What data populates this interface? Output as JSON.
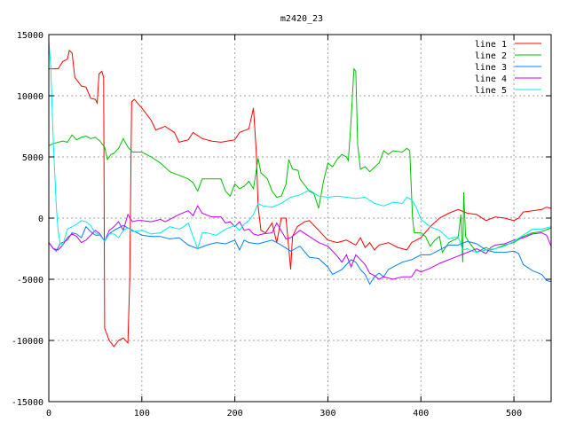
{
  "chart_data": {
    "type": "line",
    "title": "m2420_23",
    "xlabel": "",
    "ylabel": "",
    "xlim": [
      0,
      540
    ],
    "ylim": [
      -15000,
      15000
    ],
    "xticks": [
      0,
      100,
      200,
      300,
      400,
      500
    ],
    "yticks": [
      -15000,
      -10000,
      -5000,
      0,
      5000,
      10000,
      15000
    ],
    "grid": true,
    "legend_position": "top-right",
    "series": [
      {
        "name": "line 1",
        "color": "#ff0000",
        "x": [
          0,
          10,
          15,
          20,
          22,
          25,
          28,
          35,
          40,
          45,
          50,
          52,
          54,
          57,
          59,
          60,
          65,
          70,
          75,
          80,
          85,
          87,
          89,
          92,
          100,
          110,
          115,
          125,
          135,
          140,
          150,
          155,
          165,
          175,
          185,
          200,
          205,
          215,
          220,
          223,
          225,
          228,
          233,
          240,
          245,
          250,
          255,
          258,
          260,
          262,
          267,
          275,
          280,
          290,
          300,
          310,
          320,
          330,
          335,
          340,
          345,
          350,
          355,
          365,
          375,
          385,
          390,
          400,
          410,
          420,
          430,
          440,
          450,
          460,
          470,
          480,
          490,
          500,
          505,
          510,
          520,
          530,
          535,
          540
        ],
        "y": [
          12200,
          12200,
          12800,
          13000,
          13700,
          13500,
          11500,
          10800,
          10700,
          9800,
          9700,
          9400,
          11800,
          12000,
          11500,
          -9000,
          -10000,
          -10500,
          -10000,
          -9800,
          -10200,
          -5000,
          9500,
          9700,
          9000,
          8000,
          7200,
          7500,
          7000,
          6200,
          6400,
          7000,
          6500,
          6300,
          6200,
          6400,
          7000,
          7300,
          9000,
          5500,
          1000,
          -1000,
          -1200,
          -400,
          -2000,
          0,
          0,
          -2500,
          -4200,
          -1500,
          -700,
          -300,
          -200,
          -1000,
          -1800,
          -2000,
          -1800,
          -2200,
          -1600,
          -2400,
          -2000,
          -2600,
          -2200,
          -2000,
          -2400,
          -2600,
          -2000,
          -1600,
          -700,
          0,
          400,
          700,
          400,
          300,
          -200,
          100,
          0,
          -200,
          0,
          500,
          600,
          700,
          900,
          800
        ]
      },
      {
        "name": "line 2",
        "color": "#00c000",
        "x": [
          0,
          5,
          15,
          20,
          25,
          30,
          35,
          40,
          45,
          50,
          55,
          60,
          63,
          67,
          70,
          75,
          80,
          85,
          90,
          100,
          110,
          120,
          130,
          140,
          150,
          155,
          160,
          165,
          175,
          185,
          190,
          195,
          200,
          205,
          210,
          215,
          220,
          225,
          228,
          235,
          240,
          245,
          250,
          255,
          258,
          262,
          268,
          270,
          280,
          285,
          290,
          295,
          300,
          305,
          310,
          315,
          320,
          322,
          325,
          328,
          330,
          332,
          335,
          340,
          345,
          355,
          360,
          365,
          370,
          380,
          385,
          388,
          391,
          393,
          400,
          405,
          410,
          415,
          420,
          423,
          430,
          440,
          443,
          445,
          446,
          448,
          452,
          455,
          460,
          470,
          475,
          480,
          490,
          500,
          510,
          520,
          530,
          540
        ],
        "y": [
          5900,
          6100,
          6300,
          6200,
          6800,
          6400,
          6600,
          6700,
          6500,
          6600,
          6300,
          5800,
          4800,
          5200,
          5300,
          5700,
          6500,
          5800,
          5400,
          5400,
          5000,
          4500,
          3800,
          3500,
          3200,
          2900,
          2200,
          3200,
          3200,
          3200,
          2200,
          1800,
          2800,
          2400,
          2600,
          3000,
          2400,
          4900,
          3700,
          3200,
          2200,
          1700,
          1800,
          2800,
          4800,
          4000,
          3900,
          3200,
          2200,
          2000,
          800,
          2900,
          4500,
          4200,
          4800,
          5200,
          5000,
          4700,
          8000,
          12200,
          12000,
          6000,
          4000,
          4200,
          3800,
          4500,
          5500,
          5200,
          5500,
          5400,
          5700,
          5500,
          0,
          -1200,
          -1200,
          -1500,
          -2300,
          -1800,
          -1500,
          -2800,
          -2000,
          -1600,
          300,
          -3600,
          2100,
          -1500,
          -2000,
          -2300,
          -2800,
          -2400,
          -2600,
          -2500,
          -2200,
          -2000,
          -1500,
          -1200,
          -1100,
          -800
        ]
      },
      {
        "name": "line 3",
        "color": "#0080ff",
        "x": [
          0,
          5,
          8,
          12,
          20,
          25,
          30,
          35,
          40,
          45,
          50,
          55,
          60,
          65,
          70,
          75,
          80,
          85,
          90,
          100,
          110,
          120,
          130,
          140,
          150,
          160,
          170,
          180,
          190,
          200,
          205,
          210,
          215,
          225,
          230,
          240,
          250,
          260,
          270,
          280,
          290,
          300,
          305,
          315,
          320,
          325,
          330,
          335,
          340,
          345,
          350,
          355,
          360,
          365,
          370,
          380,
          390,
          400,
          410,
          420,
          430,
          440,
          450,
          455,
          460,
          470,
          480,
          490,
          500,
          505,
          510,
          520,
          530,
          535,
          540
        ],
        "y": [
          -2000,
          -2500,
          -2700,
          -2100,
          -1800,
          -1200,
          -1300,
          -1600,
          -700,
          -1100,
          -1400,
          -1400,
          -1900,
          -1300,
          -1000,
          -800,
          -600,
          -800,
          -1000,
          -1400,
          -1500,
          -1500,
          -1700,
          -1600,
          -2200,
          -2500,
          -2200,
          -2000,
          -2100,
          -1800,
          -2600,
          -1800,
          -2000,
          -2100,
          -2000,
          -1800,
          -2200,
          -2700,
          -2300,
          -3200,
          -3300,
          -4000,
          -4600,
          -4200,
          -3800,
          -3400,
          -3600,
          -4200,
          -4600,
          -5400,
          -4800,
          -4500,
          -4800,
          -4200,
          -4000,
          -3600,
          -3400,
          -3000,
          -3000,
          -2600,
          -2200,
          -2200,
          -1900,
          -2000,
          -2100,
          -2600,
          -2800,
          -2800,
          -2700,
          -2900,
          -3800,
          -4300,
          -4600,
          -5100,
          -5200
        ]
      },
      {
        "name": "line 4",
        "color": "#c000ff",
        "x": [
          0,
          5,
          10,
          15,
          20,
          25,
          30,
          35,
          40,
          45,
          50,
          55,
          60,
          65,
          70,
          75,
          80,
          85,
          90,
          95,
          100,
          110,
          120,
          125,
          130,
          140,
          150,
          155,
          160,
          165,
          175,
          185,
          190,
          195,
          200,
          205,
          210,
          215,
          220,
          225,
          230,
          240,
          245,
          255,
          260,
          265,
          270,
          280,
          290,
          300,
          310,
          315,
          320,
          325,
          330,
          340,
          345,
          350,
          355,
          360,
          370,
          380,
          390,
          395,
          400,
          410,
          420,
          430,
          440,
          450,
          460,
          470,
          475,
          480,
          490,
          500,
          510,
          520,
          530,
          535,
          540
        ],
        "y": [
          -2000,
          -2500,
          -2600,
          -2200,
          -1600,
          -1300,
          -1500,
          -2000,
          -1800,
          -1400,
          -1000,
          -1300,
          -1900,
          -1000,
          -700,
          -300,
          -1000,
          300,
          -300,
          -200,
          -200,
          -300,
          -100,
          -300,
          -100,
          300,
          600,
          200,
          1000,
          400,
          100,
          100,
          -400,
          -300,
          -700,
          -300,
          -1000,
          -900,
          -1300,
          -1400,
          -1300,
          -1200,
          -400,
          -1700,
          -1600,
          -1300,
          -1000,
          -1500,
          -2000,
          -2300,
          -3100,
          -3600,
          -3000,
          -4000,
          -3000,
          -3800,
          -4500,
          -4700,
          -5000,
          -4800,
          -5000,
          -4800,
          -4800,
          -4200,
          -4400,
          -4100,
          -3700,
          -3400,
          -3100,
          -2800,
          -2500,
          -2900,
          -2400,
          -2200,
          -2100,
          -1800,
          -1600,
          -1300,
          -1200,
          -1400,
          -2300
        ]
      },
      {
        "name": "line 5",
        "color": "#00eeee",
        "x": [
          0,
          2,
          5,
          8,
          10,
          12,
          15,
          20,
          25,
          30,
          35,
          40,
          45,
          50,
          55,
          60,
          65,
          70,
          75,
          80,
          85,
          90,
          100,
          110,
          120,
          130,
          140,
          145,
          150,
          155,
          160,
          165,
          170,
          180,
          190,
          200,
          205,
          210,
          215,
          220,
          225,
          230,
          240,
          250,
          260,
          270,
          280,
          290,
          300,
          310,
          320,
          330,
          340,
          350,
          360,
          370,
          380,
          385,
          390,
          395,
          400,
          410,
          420,
          430,
          440,
          445,
          450,
          455,
          460,
          470,
          480,
          490,
          500,
          510,
          520,
          530,
          540
        ],
        "y": [
          14500,
          12500,
          6000,
          1000,
          -1000,
          -2000,
          -2200,
          -900,
          -700,
          -500,
          -200,
          -300,
          -600,
          -1200,
          -1400,
          -1900,
          -1300,
          -1300,
          -1600,
          -1000,
          -800,
          -1100,
          -1000,
          -1300,
          -1200,
          -700,
          -900,
          -700,
          -400,
          -1500,
          -2500,
          -1200,
          -1200,
          -1400,
          -900,
          -600,
          -1000,
          -500,
          -200,
          300,
          1200,
          1000,
          900,
          1200,
          1700,
          1900,
          2300,
          1800,
          1700,
          1800,
          1700,
          1600,
          1700,
          1200,
          1000,
          1300,
          1200,
          1700,
          1500,
          900,
          -100,
          -700,
          -1000,
          -1700,
          -1500,
          -2600,
          -2500,
          -2700,
          -2800,
          -2600,
          -2500,
          -2300,
          -1900,
          -1400,
          -900,
          -900,
          -700
        ]
      }
    ]
  }
}
